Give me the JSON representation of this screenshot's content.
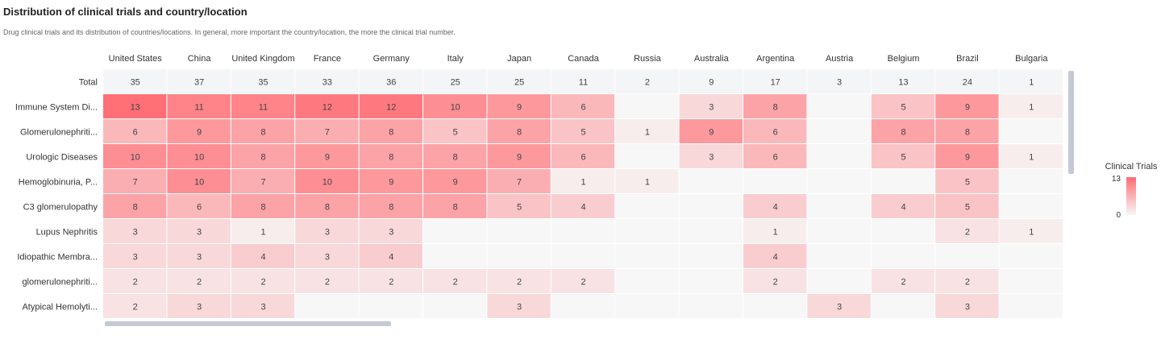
{
  "header": {
    "title": "Distribution of clinical trials and country/location",
    "subtitle": "Drug clinical trials and its distribution of countries/locations. In general, more important the country/location, the more the clinical trial number."
  },
  "colors": {
    "max": "#ff6f75",
    "min": "#f7f7f7",
    "total_row": "#f4f5f7",
    "empty": "#f7f7f7",
    "scrollbar": "#c5c9d3"
  },
  "chart_data": {
    "type": "heatmap",
    "columns": [
      "United States",
      "China",
      "United Kingdom",
      "France",
      "Germany",
      "Italy",
      "Japan",
      "Canada",
      "Russia",
      "Australia",
      "Argentina",
      "Austria",
      "Belgium",
      "Brazil",
      "Bulgaria"
    ],
    "total": {
      "label": "Total",
      "values": [
        35,
        37,
        35,
        33,
        36,
        25,
        25,
        11,
        2,
        9,
        17,
        3,
        13,
        24,
        1
      ]
    },
    "rows": [
      {
        "label": "Immune System Di...",
        "values": [
          13,
          11,
          11,
          12,
          12,
          10,
          9,
          6,
          null,
          3,
          8,
          null,
          5,
          9,
          1
        ]
      },
      {
        "label": "Glomerulonephriti...",
        "values": [
          6,
          9,
          8,
          7,
          8,
          5,
          8,
          5,
          1,
          9,
          6,
          null,
          8,
          8,
          null
        ]
      },
      {
        "label": "Urologic Diseases",
        "values": [
          10,
          10,
          8,
          9,
          8,
          8,
          9,
          6,
          null,
          3,
          6,
          null,
          5,
          9,
          1
        ]
      },
      {
        "label": "Hemoglobinuria, P...",
        "values": [
          7,
          10,
          7,
          10,
          9,
          9,
          7,
          1,
          1,
          null,
          null,
          null,
          null,
          5,
          null
        ]
      },
      {
        "label": "C3 glomerulopathy",
        "values": [
          8,
          6,
          8,
          8,
          8,
          8,
          5,
          4,
          null,
          null,
          4,
          null,
          4,
          5,
          null
        ]
      },
      {
        "label": "Lupus Nephritis",
        "values": [
          3,
          3,
          1,
          3,
          3,
          null,
          null,
          null,
          null,
          null,
          1,
          null,
          null,
          2,
          1
        ]
      },
      {
        "label": "Idiopathic Membra...",
        "values": [
          3,
          3,
          4,
          3,
          4,
          null,
          null,
          null,
          null,
          null,
          4,
          null,
          null,
          null,
          null
        ]
      },
      {
        "label": "glomerulonephriti...",
        "values": [
          2,
          2,
          2,
          2,
          2,
          2,
          2,
          2,
          null,
          null,
          2,
          null,
          2,
          2,
          null
        ]
      },
      {
        "label": "Atypical Hemolyti...",
        "values": [
          2,
          3,
          3,
          null,
          null,
          null,
          3,
          null,
          null,
          null,
          null,
          3,
          null,
          3,
          null
        ]
      }
    ],
    "legend": {
      "title": "Clinical Trials",
      "max": 13,
      "min": 0,
      "max_label": "13",
      "min_label": "0",
      "placement": "right"
    }
  }
}
